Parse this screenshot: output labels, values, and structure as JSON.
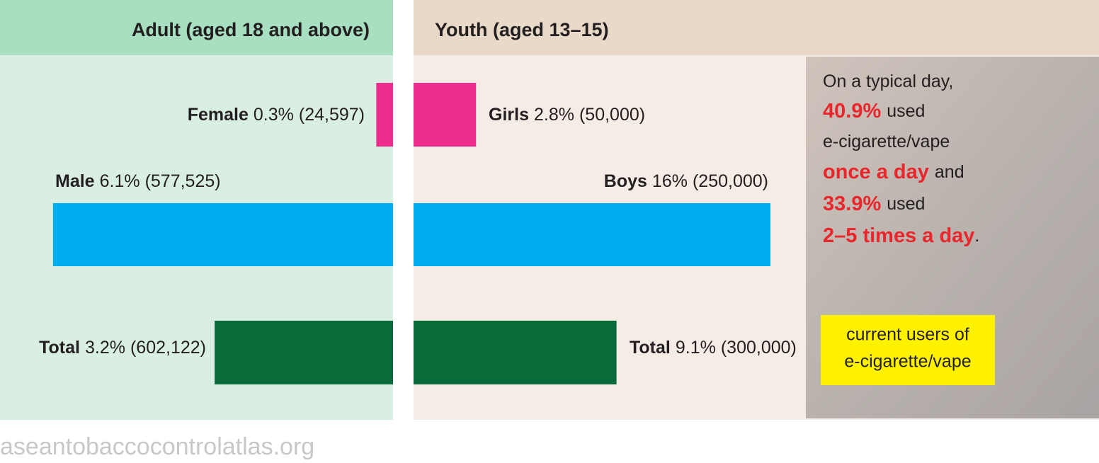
{
  "chart_data": [
    {
      "type": "bar",
      "orientation": "horizontal",
      "direction": "left",
      "title": "Adult (aged 18 and above)",
      "categories": [
        "Female",
        "Male",
        "Total"
      ],
      "values": [
        0.3,
        6.1,
        3.2
      ],
      "value_labels": [
        "0.3%",
        "6.1%",
        "3.2%"
      ],
      "counts": [
        24597,
        577525,
        602122
      ],
      "count_labels": [
        "(24,597)",
        "(577,525)",
        "(602,122)"
      ],
      "colors": [
        "#ec2d8c",
        "#00aeef",
        "#0a6a3a"
      ],
      "xlim": [
        0,
        7
      ]
    },
    {
      "type": "bar",
      "orientation": "horizontal",
      "direction": "right",
      "title": "Youth (aged 13–15)",
      "categories": [
        "Girls",
        "Boys",
        "Total"
      ],
      "values": [
        2.8,
        16,
        9.1
      ],
      "value_labels": [
        "2.8%",
        "16%",
        "9.1%"
      ],
      "counts": [
        50000,
        250000,
        300000
      ],
      "count_labels": [
        "(50,000)",
        "(250,000)",
        "(300,000)"
      ],
      "colors": [
        "#ec2d8c",
        "#00aeef",
        "#0a6a3a"
      ],
      "xlim": [
        0,
        16
      ]
    }
  ],
  "callout": {
    "line1": "On a typical day,",
    "pct1": "40.9%",
    "used1": "used",
    "line3": "e-cigarette/vape",
    "freq1": "once a day",
    "and": "and",
    "pct2": "33.9%",
    "used2": "used",
    "freq2": "2–5 times a day",
    "end": "."
  },
  "legend": {
    "line1": "current users of",
    "line2": "e-cigarette/vape"
  },
  "footer": "aseantobaccocontrolatlas.org"
}
